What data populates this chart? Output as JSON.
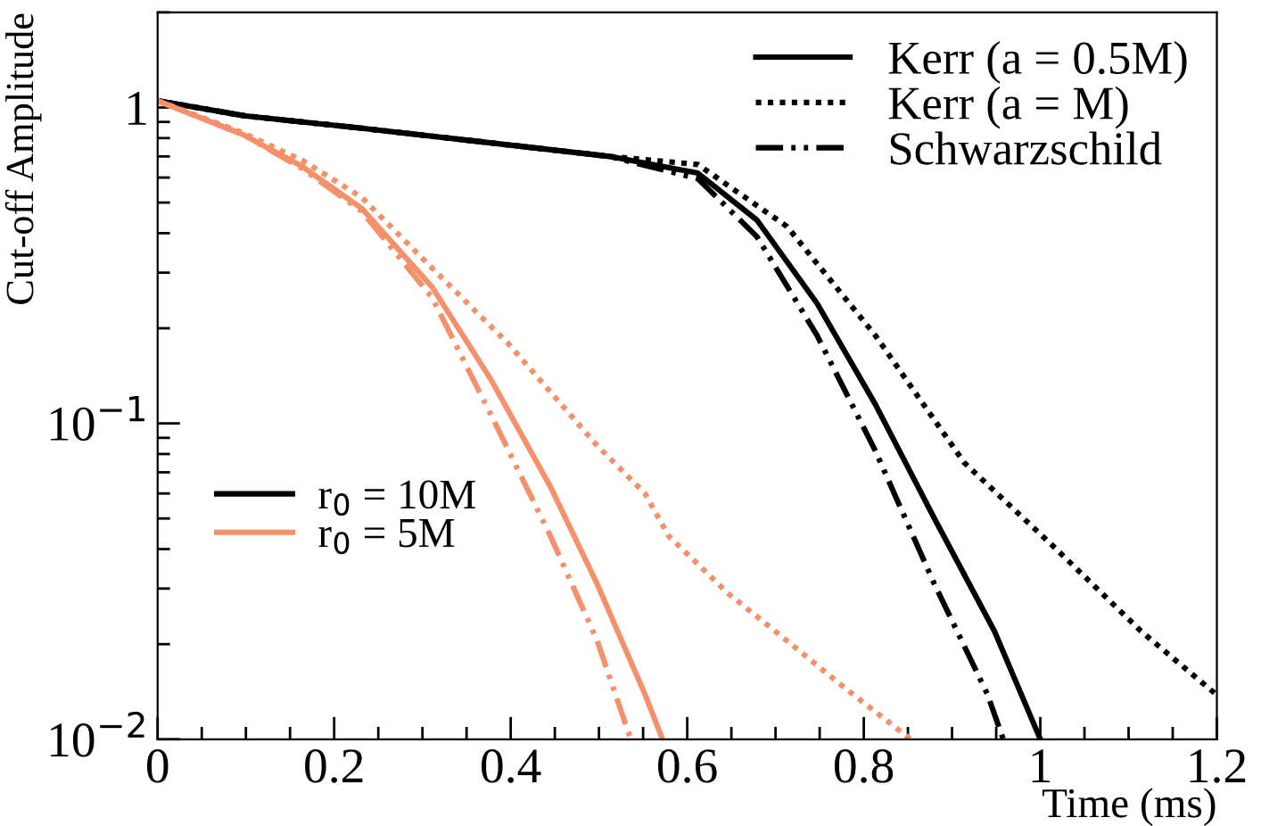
{
  "chart_data": {
    "type": "line",
    "xlabel": "Time (ms)",
    "ylabel": "Cut-off Amplitude",
    "log": "y",
    "grid": false,
    "legend": "top right",
    "marker": "none",
    "xlim": [
      0,
      1.2
    ],
    "xticks": [
      0,
      0.2,
      0.4,
      0.6,
      0.8,
      1,
      1.2
    ],
    "ylim": [
      0.01,
      2
    ],
    "yticks": [
      {
        "value": 0.01,
        "label": "10$^{−2}$"
      },
      {
        "value": 0.1,
        "label": "10$^{−1}$"
      },
      1
    ],
    "series": [
      {
        "name": "Kerr (a = 0.5M)",
        "color": "#000000",
        "line_style": "solid",
        "x": [
          0,
          0.1,
          0.231,
          0.512,
          0.612,
          0.679,
          0.747,
          0.813,
          0.88,
          0.948,
          1.0
        ],
        "values": [
          1.05,
          0.94,
          0.86,
          0.7,
          0.62,
          0.44,
          0.24,
          0.115,
          0.05,
          0.022,
          0.01
        ]
      },
      {
        "name": "Kerr (a = M)",
        "color": "#000000",
        "line_style": "dotted",
        "x": [
          0,
          0.1,
          0.231,
          0.512,
          0.612,
          0.713,
          0.813,
          0.914,
          1.014,
          1.114,
          1.2
        ],
        "values": [
          1.05,
          0.94,
          0.86,
          0.7,
          0.66,
          0.42,
          0.19,
          0.075,
          0.041,
          0.022,
          0.0138
        ]
      },
      {
        "name": "Schwarzschild",
        "color": "#000000",
        "line_style": "dashdotdot",
        "x": [
          0,
          0.1,
          0.231,
          0.512,
          0.612,
          0.679,
          0.747,
          0.813,
          0.88,
          0.94,
          0.958
        ],
        "values": [
          1.05,
          0.94,
          0.86,
          0.7,
          0.595,
          0.39,
          0.19,
          0.082,
          0.031,
          0.0139,
          0.01
        ]
      },
      {
        "color": "#f4906a",
        "line_style": "solid",
        "x": [
          0,
          0.097,
          0.164,
          0.231,
          0.311,
          0.378,
          0.445,
          0.498,
          0.552,
          0.572
        ],
        "values": [
          1.05,
          0.82,
          0.65,
          0.48,
          0.27,
          0.137,
          0.063,
          0.031,
          0.0139,
          0.01
        ]
      },
      {
        "color": "#f4906a",
        "line_style": "dotted",
        "x": [
          0,
          0.097,
          0.164,
          0.231,
          0.311,
          0.398,
          0.498,
          0.552,
          0.579,
          0.646,
          0.713,
          0.779,
          0.853
        ],
        "values": [
          1.05,
          0.83,
          0.68,
          0.52,
          0.31,
          0.178,
          0.085,
          0.06,
          0.044,
          0.029,
          0.0205,
          0.0145,
          0.01
        ]
      },
      {
        "color": "#f4906a",
        "line_style": "dashdotdot",
        "x": [
          0,
          0.097,
          0.164,
          0.231,
          0.311,
          0.378,
          0.445,
          0.498,
          0.536
        ],
        "values": [
          1.05,
          0.82,
          0.64,
          0.47,
          0.25,
          0.106,
          0.044,
          0.0205,
          0.01
        ]
      }
    ],
    "annotations": [
      "r$_{0}$ = 10M",
      "r$_{0}$ = 5M"
    ]
  }
}
